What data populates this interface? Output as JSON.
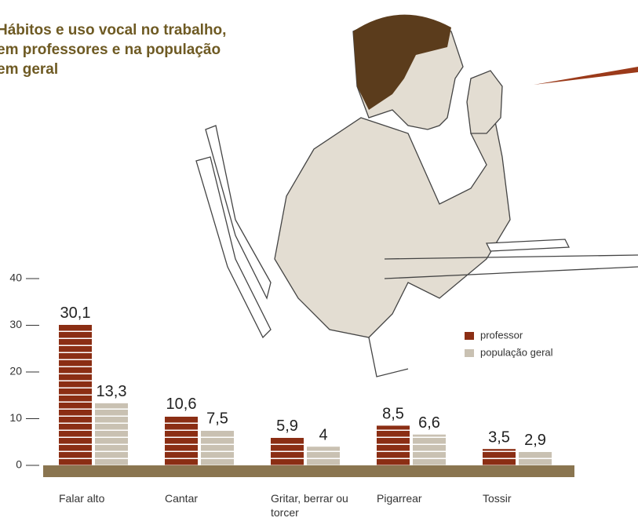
{
  "chart_data": {
    "type": "bar",
    "title": [
      "Hábitos e uso vocal no trabalho,",
      "em professores e na população",
      "em geral"
    ],
    "categories": [
      "Falar alto",
      "Cantar",
      "Gritar, berrar ou torcer",
      "Pigarrear",
      "Tossir"
    ],
    "series": [
      {
        "name": "professor",
        "color": "#8b2e14",
        "values": [
          30.1,
          10.6,
          5.9,
          8.5,
          3.5
        ],
        "value_labels": [
          "30,1",
          "10,6",
          "5,9",
          "8,5",
          "3,5"
        ]
      },
      {
        "name": "população geral",
        "color": "#c9c1b2",
        "values": [
          13.3,
          7.5,
          4,
          6.6,
          2.9
        ],
        "value_labels": [
          "13,3",
          "7,5",
          "4",
          "6,6",
          "2,9"
        ]
      }
    ],
    "ylim": [
      0,
      40
    ],
    "yticks": [
      0,
      10,
      20,
      30,
      40
    ]
  }
}
